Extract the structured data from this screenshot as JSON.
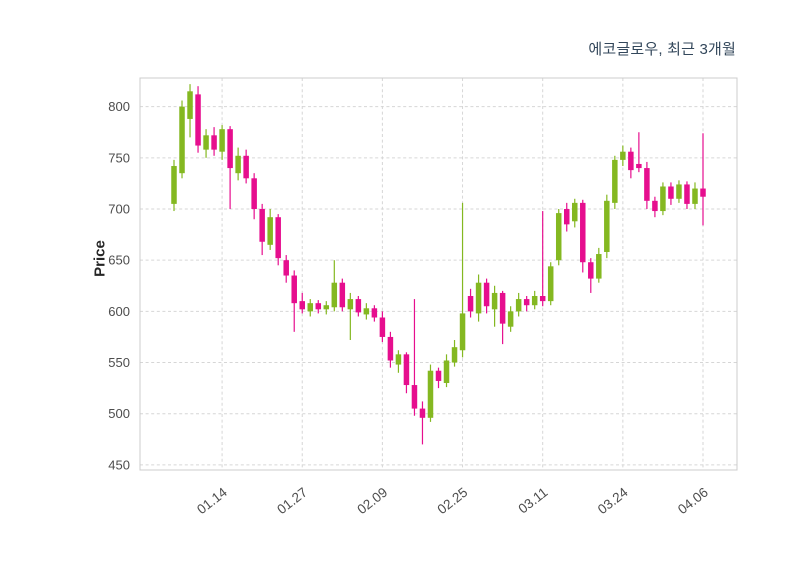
{
  "header": {
    "title": "에코글로우, 최근 3개월"
  },
  "chart_data": {
    "type": "candlestick",
    "title": "에코글로우, 최근 3개월",
    "ylabel": "Price",
    "ylim": [
      445,
      828
    ],
    "yticks": [
      450,
      500,
      550,
      600,
      650,
      700,
      750,
      800
    ],
    "xtick_labels": [
      "01.14",
      "01.27",
      "02.09",
      "02.25",
      "03.11",
      "03.24",
      "04.06"
    ],
    "xtick_indices": [
      6,
      16,
      26,
      36,
      46,
      56,
      66
    ],
    "grid": true,
    "legend": "none",
    "colors": {
      "up": "#84b821",
      "down": "#e60e8e"
    },
    "candles": [
      [
        705,
        748,
        698,
        742
      ],
      [
        735,
        806,
        730,
        800
      ],
      [
        788,
        822,
        770,
        815
      ],
      [
        812,
        820,
        755,
        762
      ],
      [
        758,
        778,
        750,
        772
      ],
      [
        772,
        780,
        752,
        758
      ],
      [
        756,
        782,
        748,
        778
      ],
      [
        778,
        781,
        700,
        740
      ],
      [
        735,
        760,
        728,
        752
      ],
      [
        752,
        758,
        725,
        730
      ],
      [
        730,
        735,
        690,
        700
      ],
      [
        700,
        705,
        655,
        668
      ],
      [
        665,
        700,
        660,
        692
      ],
      [
        692,
        695,
        645,
        652
      ],
      [
        650,
        655,
        628,
        635
      ],
      [
        635,
        640,
        580,
        608
      ],
      [
        610,
        618,
        598,
        602
      ],
      [
        600,
        612,
        595,
        608
      ],
      [
        608,
        611,
        598,
        602
      ],
      [
        602,
        610,
        597,
        606
      ],
      [
        604,
        650,
        600,
        628
      ],
      [
        628,
        632,
        600,
        604
      ],
      [
        602,
        618,
        572,
        612
      ],
      [
        612,
        615,
        595,
        599
      ],
      [
        597,
        608,
        592,
        603
      ],
      [
        603,
        606,
        590,
        594
      ],
      [
        594,
        600,
        570,
        575
      ],
      [
        575,
        580,
        545,
        552
      ],
      [
        548,
        562,
        540,
        558
      ],
      [
        558,
        560,
        520,
        528
      ],
      [
        528,
        612,
        498,
        505
      ],
      [
        505,
        512,
        470,
        496
      ],
      [
        496,
        548,
        492,
        542
      ],
      [
        542,
        545,
        525,
        532
      ],
      [
        530,
        558,
        526,
        552
      ],
      [
        550,
        572,
        546,
        565
      ],
      [
        562,
        706,
        555,
        598
      ],
      [
        615,
        622,
        594,
        600
      ],
      [
        598,
        636,
        590,
        628
      ],
      [
        628,
        632,
        598,
        605
      ],
      [
        602,
        625,
        585,
        618
      ],
      [
        618,
        620,
        568,
        588
      ],
      [
        585,
        605,
        580,
        600
      ],
      [
        600,
        618,
        595,
        612
      ],
      [
        612,
        615,
        600,
        606
      ],
      [
        606,
        620,
        602,
        615
      ],
      [
        615,
        698,
        605,
        610
      ],
      [
        610,
        648,
        606,
        644
      ],
      [
        650,
        700,
        645,
        696
      ],
      [
        700,
        706,
        678,
        685
      ],
      [
        688,
        710,
        682,
        706
      ],
      [
        706,
        709,
        638,
        648
      ],
      [
        648,
        652,
        618,
        632
      ],
      [
        632,
        662,
        628,
        656
      ],
      [
        658,
        714,
        652,
        708
      ],
      [
        706,
        752,
        700,
        748
      ],
      [
        748,
        762,
        742,
        756
      ],
      [
        756,
        760,
        730,
        738
      ],
      [
        744,
        775,
        736,
        740
      ],
      [
        740,
        746,
        700,
        708
      ],
      [
        708,
        712,
        692,
        698
      ],
      [
        698,
        726,
        694,
        722
      ],
      [
        722,
        726,
        704,
        710
      ],
      [
        710,
        728,
        706,
        724
      ],
      [
        724,
        727,
        700,
        705
      ],
      [
        705,
        726,
        700,
        720
      ],
      [
        720,
        774,
        684,
        712
      ]
    ]
  }
}
